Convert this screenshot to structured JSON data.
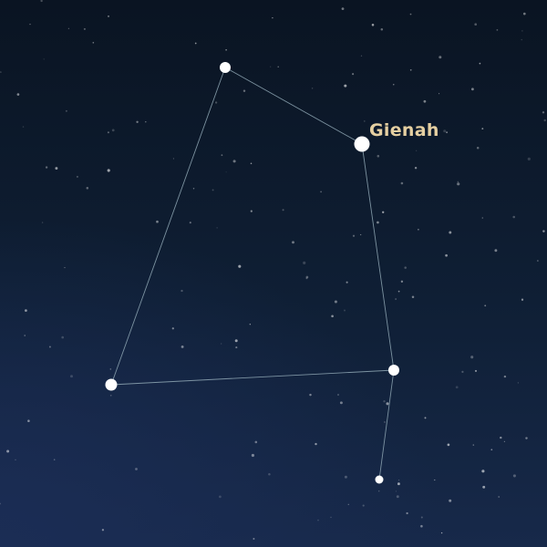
{
  "constellation": {
    "labeled_star": {
      "name": "Gienah"
    }
  },
  "colors": {
    "background": "#0b1626",
    "line": "#8fa7b4",
    "star": "#ffffff",
    "label": "#e5cfa1"
  },
  "icons": {
    "star": "circle-dot"
  }
}
